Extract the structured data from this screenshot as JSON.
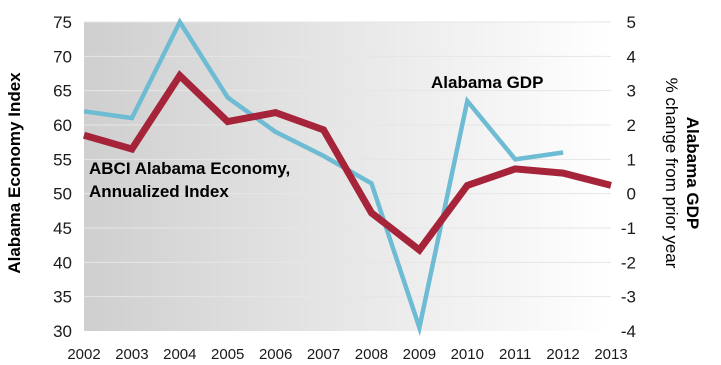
{
  "chart_data": {
    "type": "line",
    "x": [
      "2002",
      "2003",
      "2004",
      "2005",
      "2006",
      "2007",
      "2008",
      "2009",
      "2010",
      "2011",
      "2012",
      "2013"
    ],
    "series": [
      {
        "name": "ABCI Alabama Economy, Annualized Index",
        "axis": "left",
        "color": "#a6243a",
        "values": [
          58.5,
          56.5,
          67.2,
          60.5,
          61.8,
          59.3,
          47.2,
          41.8,
          51.2,
          53.6,
          53.0,
          51.2
        ]
      },
      {
        "name": "Alabama GDP",
        "axis": "right",
        "color": "#6ebcd3",
        "values": [
          2.4,
          2.2,
          5.0,
          2.8,
          1.8,
          1.1,
          0.3,
          -3.9,
          2.7,
          1.0,
          1.2,
          null
        ]
      }
    ],
    "series_labels": [
      {
        "lines": [
          "ABCI Alabama Economy,",
          "Annualized Index"
        ]
      },
      {
        "lines": [
          "Alabama GDP"
        ]
      }
    ],
    "y_left": {
      "label": "Alabama Economy Index",
      "lim": [
        30,
        75
      ],
      "ticks": [
        "30",
        "35",
        "40",
        "45",
        "50",
        "55",
        "60",
        "65",
        "70",
        "75"
      ]
    },
    "y_right": {
      "label_bold": "Alabama GDP",
      "label": "% change from prior year",
      "lim": [
        -4,
        5
      ],
      "ticks": [
        "-4",
        "-3",
        "-2",
        "-1",
        "0",
        "1",
        "2",
        "3",
        "4",
        "5"
      ]
    },
    "grid": true,
    "colors": {
      "plot_gradient_start": "#cfcfcf",
      "plot_gradient_end": "#ffffff",
      "gridline": "#e6e6e6"
    }
  }
}
